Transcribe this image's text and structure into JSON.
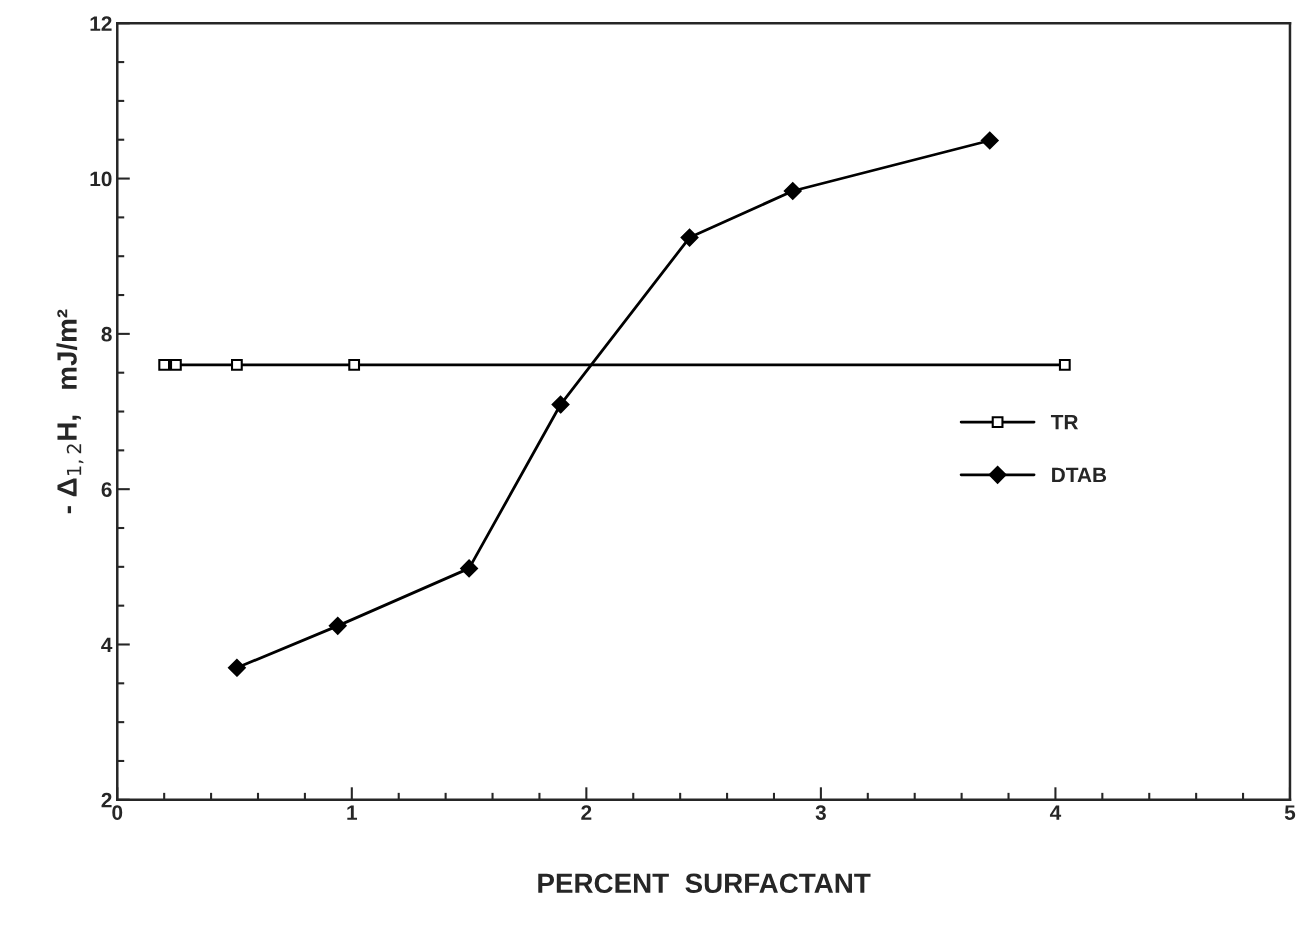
{
  "chart_data": {
    "type": "line",
    "xlabel": "PERCENT  SURFACTANT",
    "ylabel": "- Δ$_{1,2}$H,   mJ/m²",
    "xlim": [
      0,
      5
    ],
    "xticks": [
      0,
      1,
      2,
      3,
      4,
      5
    ],
    "ylim": [
      2,
      12
    ],
    "yticks": [
      2,
      4,
      6,
      8,
      10,
      12
    ],
    "grid": false,
    "legend": "center right",
    "line_style": "solid",
    "series": [
      {
        "name": "TR",
        "color": "#000000",
        "marker": "square",
        "x": [
          0.2,
          0.25,
          0.51,
          1.01,
          4.04
        ],
        "values": [
          7.6,
          7.6,
          7.6,
          7.6,
          7.6
        ]
      },
      {
        "name": "DTAB",
        "color": "#000000",
        "marker": "diamond",
        "x": [
          0.51,
          0.94,
          1.5,
          1.89,
          2.44,
          2.88,
          3.72
        ],
        "values": [
          3.7,
          4.24,
          4.98,
          7.09,
          9.24,
          9.84,
          10.49
        ]
      }
    ]
  }
}
